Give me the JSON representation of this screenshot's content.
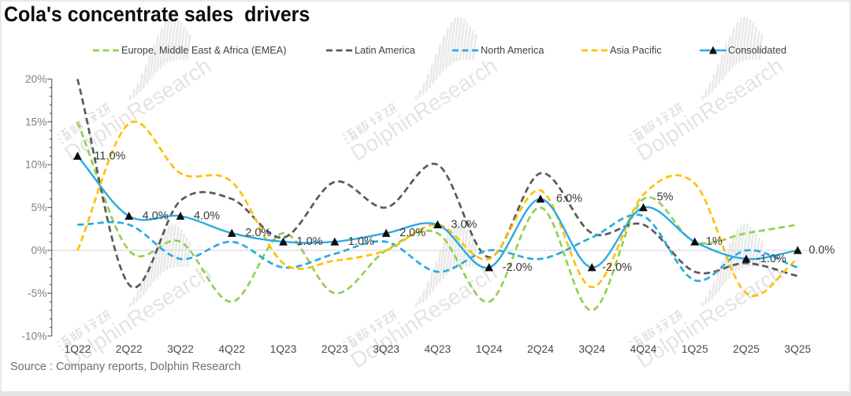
{
  "page": {
    "title": "Cola's concentrate sales  drivers",
    "source_note": "Source : Company reports, Dolphin Research"
  },
  "watermark": {
    "cn_text": "海豚投研",
    "en_text": "DolphinResearch"
  },
  "chart_data": {
    "type": "line",
    "title": "Cola's concentrate sales  drivers",
    "categories": [
      "1Q22",
      "2Q22",
      "3Q22",
      "4Q22",
      "1Q23",
      "2Q23",
      "3Q23",
      "4Q23",
      "1Q24",
      "2Q24",
      "3Q24",
      "4Q24",
      "1Q25",
      "2Q25",
      "3Q25"
    ],
    "y_axis": {
      "tick_labels": [
        "20%",
        "15%",
        "10%",
        "5%",
        "0%",
        "-5%",
        "-10%"
      ],
      "tick_values": [
        20,
        15,
        10,
        5,
        0,
        -5,
        -10
      ],
      "min": -10,
      "max": 20,
      "unit": "%"
    },
    "grid": "zero-line-only",
    "legend_position": "top",
    "line_style": "smooth",
    "series": [
      {
        "name": "Europe, Middle East & Africa (EMEA)",
        "color": "#92D050",
        "dash": "dashed",
        "values": [
          15,
          0,
          1,
          -6,
          2,
          -5,
          0,
          2,
          -6,
          5,
          -7,
          6,
          1,
          2,
          3
        ]
      },
      {
        "name": "Latin America",
        "color": "#595959",
        "dash": "dashed",
        "values": [
          20,
          -4,
          5.8,
          6,
          1.5,
          8,
          5,
          10,
          -0.8,
          9,
          2,
          3,
          -2.5,
          -1.5,
          -3
        ]
      },
      {
        "name": "North America",
        "color": "#29ABE2",
        "dash": "dashed",
        "values": [
          3,
          3,
          -1,
          1,
          -2,
          -0.4,
          1,
          -2.5,
          0,
          -1,
          1.5,
          4,
          -3.5,
          0,
          -2
        ]
      },
      {
        "name": "Asia Pacific",
        "color": "#FFC000",
        "dash": "dashed",
        "values": [
          0,
          14.8,
          9,
          8,
          -1.5,
          -1.2,
          0,
          3,
          -1,
          7,
          -4.3,
          6.5,
          7.8,
          -5,
          -1
        ]
      },
      {
        "name": "Consolidated",
        "color": "#29ABE2",
        "dash": "solid",
        "marker": "triangle",
        "marker_color": "#0d0d0d",
        "values": [
          11,
          4,
          4,
          2,
          1,
          1,
          2,
          3,
          -2,
          6,
          -2,
          5,
          1,
          -1,
          0
        ],
        "point_labels": [
          "11.0%",
          "4.0%",
          "4.0%",
          "2.0%",
          "1.0%",
          "1.0%",
          "2.0%",
          "3.0%",
          "-2.0%",
          "6.0%",
          "-2.0%",
          "5%",
          "1%",
          "-1.0%",
          "0.0%"
        ]
      }
    ]
  }
}
